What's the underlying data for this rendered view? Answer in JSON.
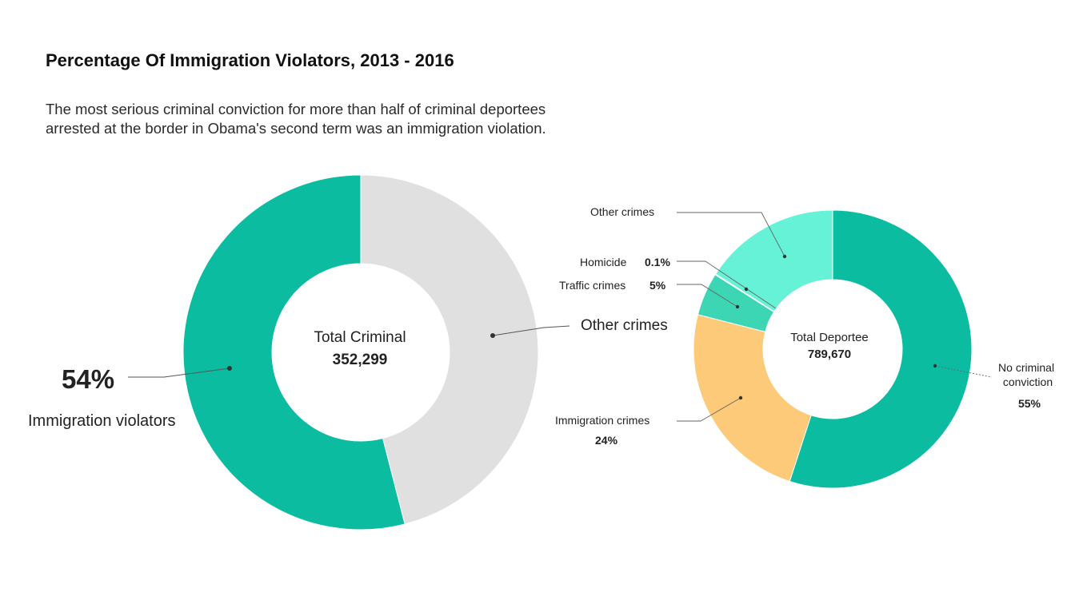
{
  "header": {
    "title": "Percentage Of Immigration Violators, 2013 - 2016",
    "subtitle_lines": [
      "The most serious criminal conviction for more than half of criminal deportees",
      "arrested at the border in Obama's second term was an immigration violation."
    ]
  },
  "chart_data": [
    {
      "type": "pie",
      "variant": "donut",
      "center_label": "Total Criminal",
      "center_value": "352,299",
      "slices": [
        {
          "label": "Immigration violators",
          "value": 54,
          "value_text": "54%",
          "color": "#0bbca0"
        },
        {
          "label": "Other crimes",
          "value": 46,
          "value_text": "",
          "color": "#e0e0e0"
        }
      ]
    },
    {
      "type": "pie",
      "variant": "donut",
      "center_label": "Total Deportee",
      "center_value": "789,670",
      "slices": [
        {
          "label": "No criminal conviction",
          "value": 55,
          "value_text": "55%",
          "color": "#0bbca0"
        },
        {
          "label": "Immigration crimes",
          "value": 24,
          "value_text": "24%",
          "color": "#fcca78"
        },
        {
          "label": "Traffic crimes",
          "value": 5,
          "value_text": "5%",
          "color": "#3dd6b5"
        },
        {
          "label": "Homicide",
          "value": 0.1,
          "value_text": "0.1%",
          "color": "#3a3a3a"
        },
        {
          "label": "Other crimes",
          "value": 15.9,
          "value_text": "",
          "color": "#66f2d7"
        }
      ]
    }
  ]
}
